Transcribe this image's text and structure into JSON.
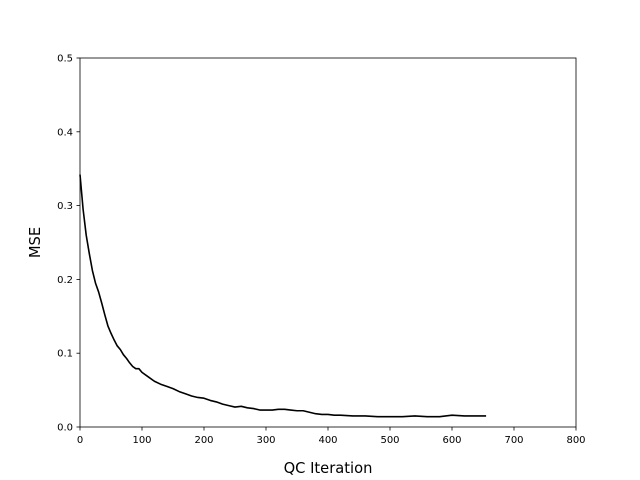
{
  "chart_data": {
    "type": "line",
    "title": "",
    "xlabel": "QC Iteration",
    "ylabel": "MSE",
    "xlim": [
      0,
      800
    ],
    "ylim": [
      0,
      0.5
    ],
    "xticks": [
      0,
      100,
      200,
      300,
      400,
      500,
      600,
      700,
      800
    ],
    "yticks": [
      0.0,
      0.1,
      0.2,
      0.3,
      0.4,
      0.5
    ],
    "xtick_labels": [
      "0",
      "100",
      "200",
      "300",
      "400",
      "500",
      "600",
      "700",
      "800"
    ],
    "ytick_labels": [
      "0.0",
      "0.1",
      "0.2",
      "0.3",
      "0.4",
      "0.5"
    ],
    "grid": false,
    "series": [
      {
        "color": "#000000",
        "x": [
          0,
          5,
          10,
          15,
          20,
          25,
          30,
          35,
          40,
          45,
          50,
          55,
          60,
          65,
          70,
          75,
          80,
          85,
          90,
          95,
          100,
          110,
          120,
          130,
          140,
          150,
          160,
          170,
          180,
          190,
          200,
          210,
          220,
          230,
          240,
          250,
          260,
          270,
          280,
          290,
          300,
          310,
          320,
          330,
          340,
          350,
          360,
          370,
          380,
          390,
          400,
          410,
          420,
          440,
          460,
          480,
          500,
          520,
          540,
          560,
          580,
          600,
          620,
          640,
          655
        ],
        "y": [
          0.342,
          0.295,
          0.26,
          0.235,
          0.212,
          0.195,
          0.183,
          0.168,
          0.152,
          0.137,
          0.127,
          0.118,
          0.11,
          0.105,
          0.098,
          0.093,
          0.087,
          0.082,
          0.079,
          0.079,
          0.074,
          0.068,
          0.062,
          0.058,
          0.055,
          0.052,
          0.048,
          0.045,
          0.042,
          0.04,
          0.039,
          0.036,
          0.034,
          0.031,
          0.029,
          0.027,
          0.028,
          0.026,
          0.025,
          0.023,
          0.023,
          0.023,
          0.024,
          0.024,
          0.023,
          0.022,
          0.022,
          0.02,
          0.018,
          0.017,
          0.017,
          0.016,
          0.016,
          0.015,
          0.015,
          0.014,
          0.014,
          0.014,
          0.015,
          0.014,
          0.014,
          0.016,
          0.015,
          0.015,
          0.015
        ]
      }
    ]
  }
}
